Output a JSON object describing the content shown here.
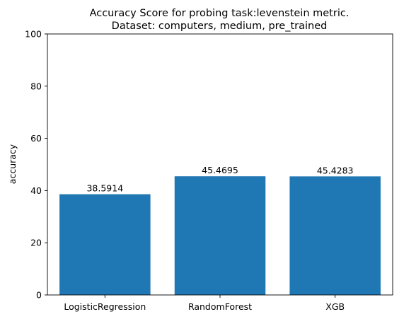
{
  "chart_data": {
    "type": "bar",
    "title_lines": [
      "Accuracy Score for probing task:levenstein metric.",
      "Dataset: computers, medium, pre_trained"
    ],
    "xlabel": "",
    "ylabel": "accuracy",
    "categories": [
      "LogisticRegression",
      "RandomForest",
      "XGB"
    ],
    "values": [
      38.5914,
      45.4695,
      45.4283
    ],
    "value_labels": [
      "38.5914",
      "45.4695",
      "45.4283"
    ],
    "ylim": [
      0,
      100
    ],
    "yticks": [
      0,
      20,
      40,
      60,
      80,
      100
    ],
    "bar_color": "#1f77b4",
    "grid": false
  }
}
